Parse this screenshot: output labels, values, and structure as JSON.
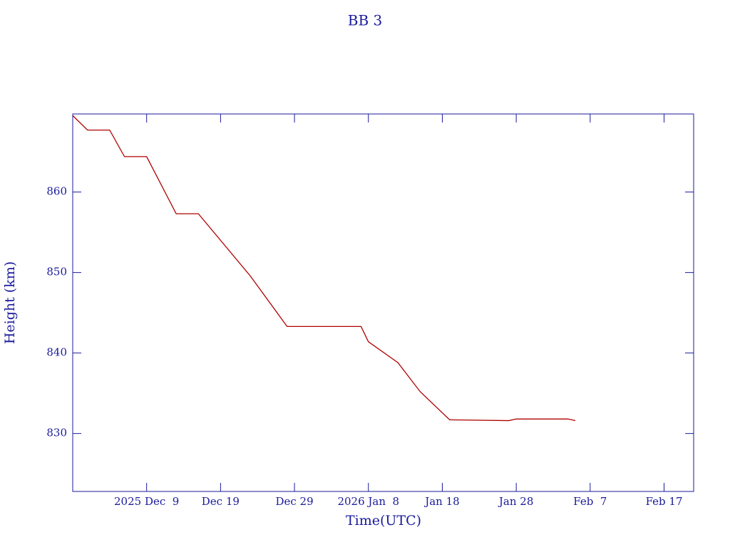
{
  "chart_data": {
    "type": "line",
    "title": "BB 3",
    "x_label": "Time(UTC)",
    "y_label": "Height (km)",
    "x": [
      "2025-11-29",
      "2025-12-01",
      "2025-12-04",
      "2025-12-06",
      "2025-12-09",
      "2025-12-13",
      "2025-12-16",
      "2025-12-23",
      "2025-12-28",
      "2026-01-07",
      "2026-01-08",
      "2026-01-12",
      "2026-01-15",
      "2026-01-19",
      "2026-01-27",
      "2026-01-28",
      "2026-02-04",
      "2026-02-05"
    ],
    "series": [
      {
        "name": "BB 3",
        "color": "#b00000",
        "values": [
          869.5,
          867.7,
          867.7,
          864.4,
          864.4,
          857.3,
          857.3,
          849.6,
          843.3,
          843.3,
          841.4,
          838.8,
          835.2,
          831.7,
          831.6,
          831.8,
          831.8,
          831.6
        ]
      }
    ],
    "xlim": [
      "2025-11-29",
      "2026-02-21"
    ],
    "xticks": [
      {
        "value": "2025-12-09",
        "label": "2025 Dec  9"
      },
      {
        "value": "2025-12-19",
        "label": "Dec 19"
      },
      {
        "value": "2025-12-29",
        "label": "Dec 29"
      },
      {
        "value": "2026-01-08",
        "label": "2026 Jan  8"
      },
      {
        "value": "2026-01-18",
        "label": "Jan 18"
      },
      {
        "value": "2026-01-28",
        "label": "Jan 28"
      },
      {
        "value": "2026-02-07",
        "label": "Feb  7"
      },
      {
        "value": "2026-02-17",
        "label": "Feb 17"
      }
    ],
    "ylim": [
      822.8,
      869.7
    ],
    "yticks": [
      830,
      840,
      850,
      860
    ],
    "axis_color": "#1a1a9c"
  }
}
